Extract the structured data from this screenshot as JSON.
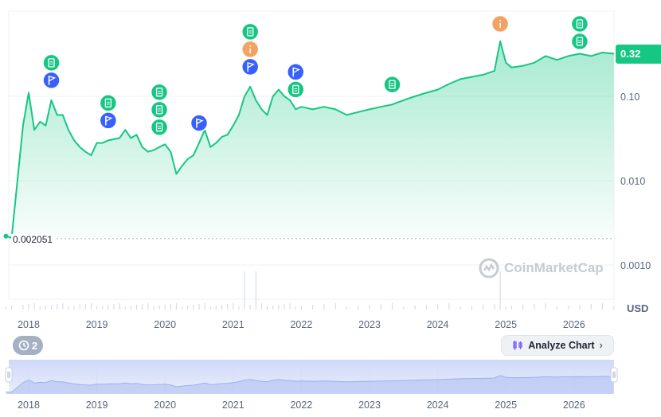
{
  "chart_data": {
    "type": "line",
    "scale": "log",
    "x": [
      "2017-09",
      "2017-10",
      "2017-12",
      "2018-01",
      "2018-02",
      "2018-03",
      "2018-04",
      "2018-05",
      "2018-06",
      "2018-07",
      "2018-08",
      "2018-09",
      "2018-10",
      "2018-11",
      "2018-12",
      "2019-01",
      "2019-02",
      "2019-03",
      "2019-04",
      "2019-05",
      "2019-06",
      "2019-07",
      "2019-08",
      "2019-09",
      "2019-10",
      "2019-11",
      "2019-12",
      "2020-01",
      "2020-02",
      "2020-03",
      "2020-04",
      "2020-05",
      "2020-06",
      "2020-07",
      "2020-08",
      "2020-09",
      "2020-10",
      "2020-11",
      "2020-12",
      "2021-01",
      "2021-02",
      "2021-03",
      "2021-04",
      "2021-05",
      "2021-06",
      "2021-07",
      "2021-08",
      "2021-09",
      "2021-10",
      "2021-11",
      "2021-12",
      "2022-01",
      "2022-03",
      "2022-05",
      "2022-07",
      "2022-09",
      "2022-11",
      "2023-01",
      "2023-03",
      "2023-05",
      "2023-07",
      "2023-09",
      "2023-11",
      "2024-01",
      "2024-03",
      "2024-05",
      "2024-07",
      "2024-09",
      "2024-11",
      "2024-12",
      "2025-01",
      "2025-02",
      "2025-04",
      "2025-06",
      "2025-08",
      "2025-10",
      "2025-12",
      "2026-02",
      "2026-04",
      "2026-06",
      "2026-08"
    ],
    "values": [
      0.0022,
      0.0021,
      0.045,
      0.11,
      0.04,
      0.05,
      0.045,
      0.09,
      0.06,
      0.06,
      0.04,
      0.03,
      0.025,
      0.022,
      0.02,
      0.028,
      0.028,
      0.03,
      0.031,
      0.032,
      0.04,
      0.032,
      0.035,
      0.025,
      0.022,
      0.023,
      0.025,
      0.027,
      0.022,
      0.012,
      0.015,
      0.018,
      0.02,
      0.028,
      0.04,
      0.025,
      0.028,
      0.033,
      0.035,
      0.045,
      0.06,
      0.1,
      0.13,
      0.09,
      0.07,
      0.06,
      0.1,
      0.12,
      0.1,
      0.09,
      0.07,
      0.075,
      0.07,
      0.075,
      0.07,
      0.06,
      0.065,
      0.07,
      0.075,
      0.08,
      0.09,
      0.1,
      0.11,
      0.12,
      0.14,
      0.16,
      0.17,
      0.18,
      0.2,
      0.45,
      0.25,
      0.22,
      0.23,
      0.25,
      0.3,
      0.27,
      0.3,
      0.32,
      0.3,
      0.33,
      0.32
    ],
    "yticks": [
      "0.10",
      "0.010",
      "0.0010"
    ],
    "xticks": [
      "2018",
      "2019",
      "2020",
      "2021",
      "2022",
      "2023",
      "2024",
      "2025",
      "2026"
    ],
    "current_price": "0.32",
    "low_price": "0.002051",
    "y_unit": "USD",
    "line_color": "#16c784",
    "events": [
      {
        "x": "2018-05",
        "kind": "doc",
        "stack": 0
      },
      {
        "x": "2018-05",
        "kind": "flag",
        "stack": 1
      },
      {
        "x": "2019-03",
        "kind": "doc",
        "stack": 0
      },
      {
        "x": "2019-03",
        "kind": "flag",
        "stack": 1
      },
      {
        "x": "2019-12",
        "kind": "doc",
        "stack": 0
      },
      {
        "x": "2019-12",
        "kind": "doc",
        "stack": 1
      },
      {
        "x": "2019-12",
        "kind": "doc",
        "stack": 2
      },
      {
        "x": "2020-07",
        "kind": "flag",
        "stack": 0
      },
      {
        "x": "2021-04",
        "kind": "doc",
        "stack": 0
      },
      {
        "x": "2021-04",
        "kind": "info",
        "stack": 1
      },
      {
        "x": "2021-04",
        "kind": "flag",
        "stack": 2
      },
      {
        "x": "2021-12",
        "kind": "flag",
        "stack": 0
      },
      {
        "x": "2021-12",
        "kind": "doc",
        "stack": 1
      },
      {
        "x": "2023-05",
        "kind": "doc",
        "stack": 0
      },
      {
        "x": "2024-12",
        "kind": "info",
        "stack": 0
      },
      {
        "x": "2026-02",
        "kind": "doc",
        "stack": 0
      },
      {
        "x": "2026-02",
        "kind": "doc",
        "stack": 1
      }
    ],
    "volume_spikes": [
      "2021-03",
      "2021-05",
      "2024-12"
    ]
  },
  "ui": {
    "watermark": "CoinMarketCap",
    "history_count": "2",
    "analyze_label": "Analyze Chart",
    "colors": {
      "doc": "#16c784",
      "flag": "#3861fb",
      "info": "#f4a261",
      "line": "#16c784"
    }
  }
}
